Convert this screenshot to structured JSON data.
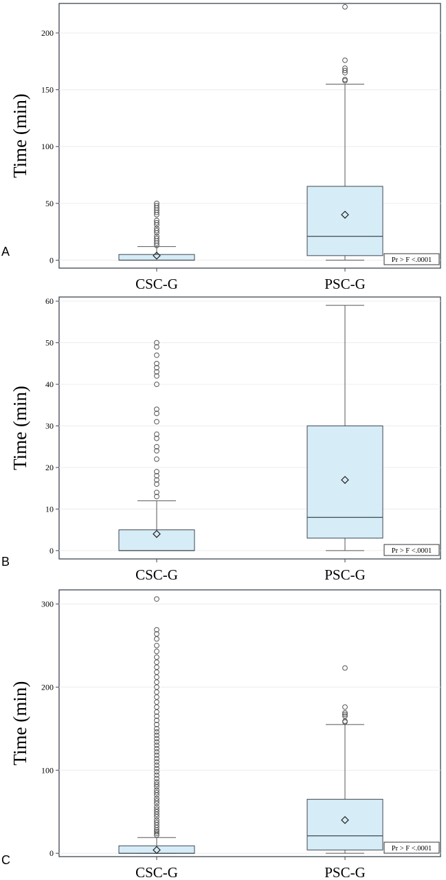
{
  "chart_data": [
    {
      "panel": "A",
      "type": "box",
      "ylabel": "Time (min)",
      "yticks": [
        0,
        50,
        100,
        150,
        200
      ],
      "ylim": [
        -7,
        226
      ],
      "categories": [
        "CSC-G",
        "PSC-G"
      ],
      "boxes": [
        {
          "name": "CSC-G",
          "min": 0,
          "q1": 0,
          "median": 0,
          "q3": 5,
          "whisker_high": 12,
          "mean": 4,
          "outliers": [
            13,
            15,
            17,
            19,
            21,
            24,
            26,
            28,
            31,
            33,
            35,
            40,
            42,
            44,
            46,
            48,
            50
          ]
        },
        {
          "name": "PSC-G",
          "min": 0,
          "q1": 4,
          "median": 21,
          "q3": 65,
          "whisker_high": 155,
          "mean": 40,
          "outliers": [
            158,
            159,
            165,
            167,
            169,
            176,
            223
          ]
        }
      ],
      "annotation": "Pr > F  <.0001"
    },
    {
      "panel": "B",
      "type": "box",
      "ylabel": "Time (min)",
      "yticks": [
        0,
        10,
        20,
        30,
        40,
        50,
        60
      ],
      "ylim": [
        -2,
        61
      ],
      "categories": [
        "CSC-G",
        "PSC-G"
      ],
      "boxes": [
        {
          "name": "CSC-G",
          "min": 0,
          "q1": 0,
          "median": 0,
          "q3": 5,
          "whisker_high": 12,
          "mean": 4,
          "outliers": [
            13,
            14,
            16,
            17,
            18,
            19,
            22,
            24,
            25,
            27,
            28,
            31,
            33,
            34,
            40,
            42,
            43,
            44,
            45,
            47,
            49,
            50
          ]
        },
        {
          "name": "PSC-G",
          "min": 0,
          "q1": 3,
          "median": 8,
          "q3": 30,
          "whisker_high": 59,
          "mean": 17,
          "outliers": []
        }
      ],
      "annotation": "Pr > F  <.0001"
    },
    {
      "panel": "C",
      "type": "box",
      "ylabel": "Time (min)",
      "yticks": [
        0,
        100,
        200,
        300
      ],
      "ylim": [
        -4,
        317
      ],
      "categories": [
        "CSC-G",
        "PSC-G"
      ],
      "boxes": [
        {
          "name": "CSC-G",
          "min": 0,
          "q1": 0,
          "median": 0,
          "q3": 9,
          "whisker_high": 19,
          "mean": 4,
          "outliers": [
            22,
            24,
            26,
            28,
            31,
            34,
            37,
            40,
            44,
            47,
            50,
            53,
            56,
            60,
            63,
            66,
            70,
            73,
            76,
            80,
            83,
            86,
            90,
            94,
            98,
            102,
            106,
            110,
            114,
            118,
            122,
            126,
            130,
            134,
            138,
            142,
            146,
            150,
            155,
            160,
            165,
            170,
            176,
            182,
            188,
            194,
            200,
            206,
            212,
            218,
            224,
            230,
            236,
            243,
            250,
            258,
            264,
            269,
            306
          ]
        },
        {
          "name": "PSC-G",
          "min": 0,
          "q1": 4,
          "median": 21,
          "q3": 65,
          "whisker_high": 155,
          "mean": 40,
          "outliers": [
            158,
            159,
            165,
            167,
            169,
            176,
            223
          ]
        }
      ],
      "annotation": "Pr > F  <.0001"
    }
  ],
  "colors": {
    "box_fill": "#d6ecf7",
    "frame": "#3c4650",
    "whisker": "#555555",
    "gridline": "#ececec"
  }
}
